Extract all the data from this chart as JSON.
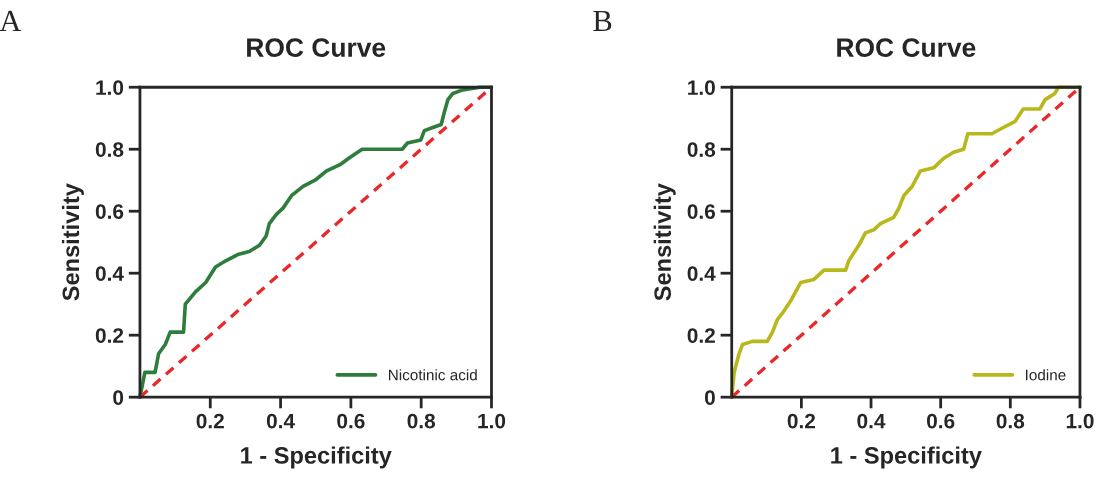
{
  "chart_data": [
    {
      "type": "line",
      "title": "ROC Curve",
      "xlabel": "1 - Specificity",
      "ylabel": "Sensitivity",
      "annotations": [
        "A"
      ],
      "xlim": [
        0,
        1
      ],
      "ylim": [
        0,
        1
      ],
      "xticks": [
        0.2,
        0.4,
        0.6,
        0.8,
        {
          "value": 1,
          "label": "1.0"
        }
      ],
      "yticks": [
        0,
        0.2,
        0.4,
        0.6,
        0.8,
        {
          "value": 1,
          "label": "1.0"
        }
      ],
      "grid": false,
      "legend": "bottom right",
      "series": [
        {
          "name": "Nicotinic acid",
          "color": "#2e7d3c",
          "line_style": "solid",
          "x": [
            0,
            0.014,
            0.043,
            0.053,
            0.072,
            0.086,
            0.124,
            0.129,
            0.158,
            0.187,
            0.215,
            0.244,
            0.278,
            0.311,
            0.34,
            0.359,
            0.368,
            0.388,
            0.407,
            0.431,
            0.464,
            0.498,
            0.531,
            0.569,
            0.593,
            0.632,
            0.746,
            0.761,
            0.799,
            0.809,
            0.833,
            0.857,
            0.866,
            0.876,
            0.89,
            0.914,
            0.967,
            1
          ],
          "values": [
            0,
            0.08,
            0.08,
            0.14,
            0.17,
            0.21,
            0.21,
            0.3,
            0.34,
            0.37,
            0.42,
            0.44,
            0.46,
            0.47,
            0.49,
            0.52,
            0.56,
            0.59,
            0.61,
            0.65,
            0.68,
            0.7,
            0.73,
            0.75,
            0.77,
            0.8,
            0.8,
            0.82,
            0.83,
            0.86,
            0.87,
            0.88,
            0.92,
            0.96,
            0.98,
            0.99,
            1,
            1
          ]
        },
        {
          "color": "#e8282a",
          "line_style": "dashed",
          "x": [
            0,
            1
          ],
          "values": [
            0,
            1
          ]
        }
      ]
    },
    {
      "type": "line",
      "title": "ROC Curve",
      "xlabel": "1 - Specificity",
      "ylabel": "Sensitivity",
      "annotations": [
        "B"
      ],
      "xlim": [
        0,
        1
      ],
      "ylim": [
        0,
        1
      ],
      "xticks": [
        0.2,
        0.4,
        0.6,
        0.8,
        {
          "value": 1,
          "label": "1.0"
        }
      ],
      "yticks": [
        0,
        0.2,
        0.4,
        0.6,
        0.8,
        {
          "value": 1,
          "label": "1.0"
        }
      ],
      "grid": false,
      "legend": "bottom right",
      "series": [
        {
          "name": "Iodine",
          "color": "#b8b81c",
          "line_style": "solid",
          "x": [
            0,
            0.007,
            0.021,
            0.031,
            0.059,
            0.102,
            0.117,
            0.131,
            0.145,
            0.169,
            0.198,
            0.236,
            0.265,
            0.327,
            0.336,
            0.365,
            0.384,
            0.408,
            0.427,
            0.465,
            0.48,
            0.494,
            0.518,
            0.542,
            0.58,
            0.608,
            0.637,
            0.666,
            0.678,
            0.747,
            0.78,
            0.814,
            0.837,
            0.885,
            0.9,
            0.928,
            0.938,
            1
          ],
          "values": [
            0,
            0.08,
            0.14,
            0.17,
            0.18,
            0.18,
            0.21,
            0.25,
            0.27,
            0.31,
            0.37,
            0.38,
            0.41,
            0.41,
            0.44,
            0.49,
            0.53,
            0.54,
            0.56,
            0.58,
            0.61,
            0.65,
            0.68,
            0.73,
            0.74,
            0.77,
            0.79,
            0.8,
            0.85,
            0.85,
            0.87,
            0.89,
            0.93,
            0.93,
            0.96,
            0.98,
            1,
            1
          ]
        },
        {
          "color": "#e8282a",
          "line_style": "dashed",
          "x": [
            0,
            1
          ],
          "values": [
            0,
            1
          ]
        }
      ]
    }
  ]
}
